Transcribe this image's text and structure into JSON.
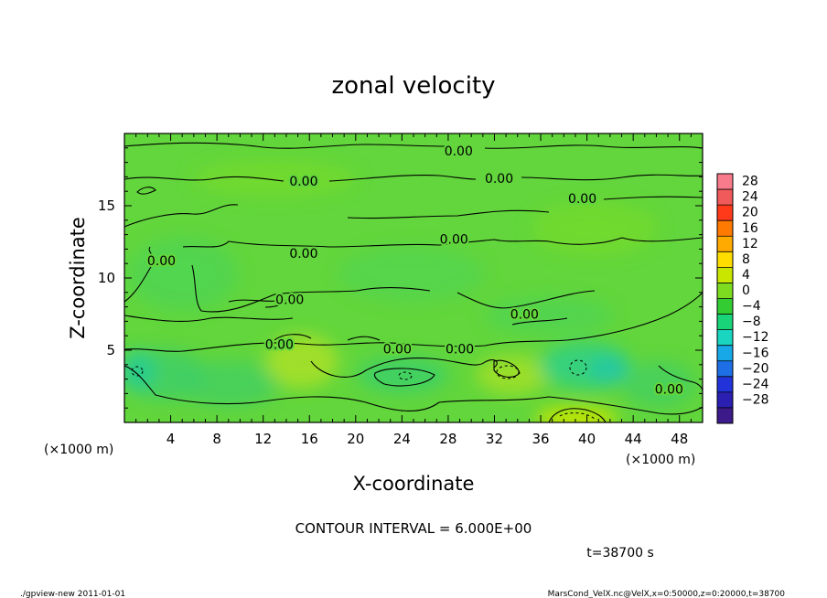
{
  "chart_data": {
    "type": "heatmap",
    "title": "zonal velocity",
    "xlabel": "X-coordinate",
    "ylabel": "Z-coordinate",
    "x_unit_label": "(×1000 m)",
    "y_unit_label": "(×1000 m)",
    "xlim": [
      0,
      50
    ],
    "ylim": [
      0,
      20
    ],
    "x_ticks": [
      "4",
      "8",
      "12",
      "16",
      "20",
      "24",
      "28",
      "32",
      "36",
      "40",
      "44",
      "48"
    ],
    "x_tick_values": [
      4,
      8,
      12,
      16,
      20,
      24,
      28,
      32,
      36,
      40,
      44,
      48
    ],
    "y_ticks": [
      "5",
      "10",
      "15"
    ],
    "y_tick_values": [
      5,
      10,
      15
    ],
    "colorbar": {
      "labels": [
        "28",
        "24",
        "20",
        "16",
        "12",
        "8",
        "4",
        "0",
        "−4",
        "−8",
        "−12",
        "−16",
        "−20",
        "−24",
        "−28"
      ],
      "values": [
        28,
        24,
        20,
        16,
        12,
        8,
        4,
        0,
        -4,
        -8,
        -12,
        -16,
        -20,
        -24,
        -28
      ],
      "colors": [
        "#f77b8b",
        "#f05a5a",
        "#ff3a1a",
        "#ff7a00",
        "#ffaa00",
        "#ffdd00",
        "#c8e600",
        "#7ddc1f",
        "#33cc33",
        "#1ad47a",
        "#1ad6c0",
        "#18a8e8",
        "#1e6fe6",
        "#2233d9",
        "#2a1fb0",
        "#3d1a8a"
      ]
    },
    "contour_labels": [
      {
        "text": "0.00",
        "x": 28.9,
        "z": 18.8
      },
      {
        "text": "0.00",
        "x": 15.5,
        "z": 16.7
      },
      {
        "text": "0.00",
        "x": 32.4,
        "z": 16.9
      },
      {
        "text": "0.00",
        "x": 39.6,
        "z": 15.5
      },
      {
        "text": "0.00",
        "x": 28.5,
        "z": 12.7
      },
      {
        "text": "0.00",
        "x": 15.5,
        "z": 11.7
      },
      {
        "text": "0.00",
        "x": 3.2,
        "z": 11.2
      },
      {
        "text": "0.00",
        "x": 14.3,
        "z": 8.5
      },
      {
        "text": "0.00",
        "x": 34.6,
        "z": 7.5
      },
      {
        "text": "0.00",
        "x": 13.4,
        "z": 5.4
      },
      {
        "text": "0.00",
        "x": 23.6,
        "z": 5.1
      },
      {
        "text": "0.00",
        "x": 29.0,
        "z": 5.1
      },
      {
        "text": "0.00",
        "x": 47.1,
        "z": 2.3
      }
    ],
    "contour_interval_text": "CONTOUR INTERVAL = 6.000E+00",
    "time_text": "t=38700 s"
  },
  "footer": {
    "left": "./gpview-new  2011-01-01",
    "right": "MarsCond_VelX.nc@VelX,x=0:50000,z=0:20000,t=38700"
  }
}
